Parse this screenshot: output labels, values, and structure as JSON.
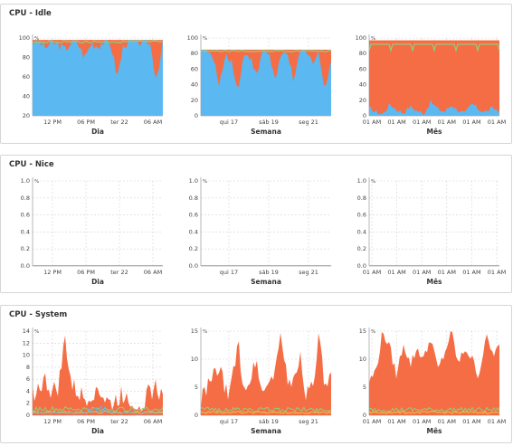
{
  "panels": [
    {
      "title": "CPU - Idle",
      "charts": [
        {
          "period": "Dia",
          "ymax": 100,
          "yticks": [
            "100",
            "80",
            "60",
            "40",
            "20"
          ],
          "xticks": [
            "12 PM",
            "06 PM",
            "ter 22",
            "06 AM"
          ],
          "unit": "%"
        },
        {
          "period": "Semana",
          "ymax": 100,
          "yticks": [
            "100",
            "80",
            "60",
            "40",
            "20",
            "0"
          ],
          "xticks": [
            "qui 17",
            "sáb 19",
            "seg 21"
          ],
          "unit": "%"
        },
        {
          "period": "Mês",
          "ymax": 100,
          "yticks": [
            "100",
            "80",
            "60",
            "40",
            "20",
            "0"
          ],
          "xticks": [
            "01 AM",
            "01 AM",
            "01 AM",
            "01 AM",
            "01 AM",
            "01 AM"
          ],
          "unit": "%"
        }
      ]
    },
    {
      "title": "CPU - Nice",
      "charts": [
        {
          "period": "Dia",
          "ymax": 1,
          "yticks": [
            "1.0",
            "0.8",
            "0.6",
            "0.4",
            "0.2",
            "0.0"
          ],
          "xticks": [
            "12 PM",
            "06 PM",
            "ter 22",
            "06 AM"
          ],
          "unit": "%"
        },
        {
          "period": "Semana",
          "ymax": 1,
          "yticks": [
            "1.0",
            "0.8",
            "0.6",
            "0.4",
            "0.2",
            "0.0"
          ],
          "xticks": [
            "qui 17",
            "sáb 19",
            "seg 21"
          ],
          "unit": "%"
        },
        {
          "period": "Mês",
          "ymax": 1,
          "yticks": [
            "1.0",
            "0.8",
            "0.6",
            "0.4",
            "0.2",
            "0.0"
          ],
          "xticks": [
            "01 AM",
            "01 AM",
            "01 AM",
            "01 AM",
            "01 AM",
            "01 AM"
          ],
          "unit": "%"
        }
      ]
    },
    {
      "title": "CPU - System",
      "charts": [
        {
          "period": "Dia",
          "ymax": 14,
          "yticks": [
            "14",
            "12",
            "10",
            "8",
            "6",
            "4",
            "2",
            "0"
          ],
          "xticks": [
            "12 PM",
            "06 PM",
            "ter 22",
            "06 AM"
          ],
          "unit": "%"
        },
        {
          "period": "Semana",
          "ymax": 15,
          "yticks": [
            "15",
            "10",
            "5",
            "0"
          ],
          "xticks": [
            "qui 17",
            "sáb 19",
            "seg 21"
          ],
          "unit": "%"
        },
        {
          "period": "Mês",
          "ymax": 15,
          "yticks": [
            "15",
            "10",
            "5",
            "0"
          ],
          "xticks": [
            "01 AM",
            "01 AM",
            "01 AM",
            "01 AM",
            "01 AM",
            "01 AM"
          ],
          "unit": "%"
        }
      ]
    }
  ],
  "colors": {
    "idle_blue": "#5bb8f0",
    "system_orange": "#f56d45",
    "green": "#8fd07a",
    "yellow": "#e8d84a",
    "purple": "#b899d8",
    "grid": "#d4d4d4"
  },
  "chart_data": [
    {
      "type": "area",
      "title": "CPU - Idle",
      "xlabel": "Dia",
      "ylim": [
        20,
        100
      ],
      "series": [
        {
          "values": [
            97,
            96,
            90,
            95,
            93,
            88,
            96,
            94,
            80,
            95,
            92,
            97,
            94,
            60,
            94,
            96,
            95,
            97,
            96,
            58,
            95
          ]
        }
      ]
    },
    {
      "type": "area",
      "title": "CPU - Idle",
      "xlabel": "Semana",
      "ylim": [
        0,
        100
      ],
      "series": [
        {
          "values": [
            90,
            85,
            72,
            40,
            80,
            70,
            30,
            82,
            75,
            50,
            85,
            80,
            45,
            78,
            82,
            40,
            85,
            80,
            70,
            82,
            30,
            75
          ]
        }
      ]
    },
    {
      "type": "area",
      "title": "CPU - Idle",
      "xlabel": "Mês",
      "ylim": [
        0,
        100
      ],
      "series": [
        {
          "values": [
            10,
            5,
            2,
            15,
            8,
            4,
            12,
            6,
            3,
            18,
            9,
            5,
            14,
            7,
            3,
            16,
            8,
            5,
            10,
            6
          ]
        }
      ]
    },
    {
      "type": "line",
      "title": "CPU - Nice",
      "xlabel": "Dia",
      "ylim": [
        0,
        1
      ],
      "series": [
        {
          "values": [
            0,
            0,
            0,
            0,
            0,
            0
          ]
        }
      ]
    },
    {
      "type": "line",
      "title": "CPU - Nice",
      "xlabel": "Semana",
      "ylim": [
        0,
        1
      ],
      "series": [
        {
          "values": [
            0,
            0,
            0,
            0,
            0,
            0
          ]
        }
      ]
    },
    {
      "type": "line",
      "title": "CPU - Nice",
      "xlabel": "Mês",
      "ylim": [
        0,
        1
      ],
      "series": [
        {
          "values": [
            0,
            0,
            0,
            0,
            0,
            0
          ]
        }
      ]
    },
    {
      "type": "area",
      "title": "CPU - System",
      "xlabel": "Dia",
      "ylim": [
        0,
        14
      ],
      "series": [
        {
          "values": [
            3,
            4,
            5,
            3,
            4,
            12,
            4,
            3,
            2,
            3,
            4,
            2,
            1,
            2,
            3,
            2,
            1,
            2,
            3,
            4,
            2
          ]
        }
      ]
    },
    {
      "type": "area",
      "title": "CPU - System",
      "xlabel": "Semana",
      "ylim": [
        0,
        15
      ],
      "series": [
        {
          "values": [
            2,
            4,
            6,
            8,
            3,
            5,
            12,
            4,
            6,
            9,
            3,
            5,
            8,
            14,
            4,
            6,
            10,
            3,
            5,
            13,
            4,
            6
          ]
        }
      ]
    },
    {
      "type": "area",
      "title": "CPU - System",
      "xlabel": "Mês",
      "ylim": [
        0,
        15
      ],
      "series": [
        {
          "values": [
            6,
            8,
            15,
            12,
            7,
            13,
            9,
            12,
            10,
            14,
            8,
            11,
            15,
            9,
            12,
            10,
            7,
            14,
            11,
            12
          ]
        }
      ]
    }
  ]
}
